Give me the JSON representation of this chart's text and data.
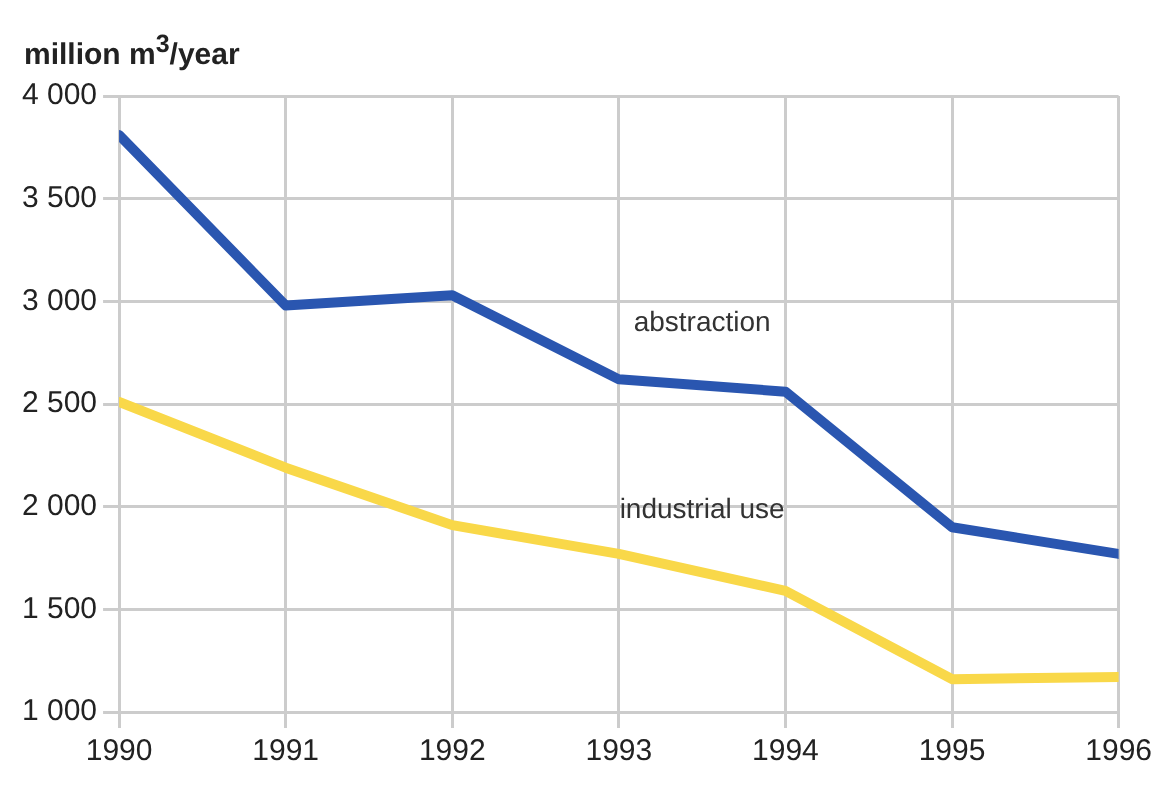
{
  "chart_data": {
    "type": "line",
    "ylabel": "million m$^{3}$/year",
    "x": [
      1990,
      1991,
      1992,
      1993,
      1994,
      1995,
      1996
    ],
    "series": [
      {
        "name": "abstraction",
        "color": "#2a56b0",
        "values": [
          3810,
          2980,
          3030,
          2620,
          2560,
          1900,
          1770
        ]
      },
      {
        "name": "industrial use",
        "color": "#f9d849",
        "values": [
          2510,
          2190,
          1910,
          1770,
          1590,
          1160,
          1170
        ]
      }
    ],
    "xlim": [
      1990,
      1996
    ],
    "xticks": [
      1990,
      1991,
      1992,
      1993,
      1994,
      1995,
      1996
    ],
    "ylim": [
      1000,
      4000
    ],
    "yticks": [
      {
        "value": 1000,
        "label": "1 000"
      },
      {
        "value": 1500,
        "label": "1 500"
      },
      {
        "value": 2000,
        "label": "2 000"
      },
      {
        "value": 2500,
        "label": "2 500"
      },
      {
        "value": 3000,
        "label": "3 000"
      },
      {
        "value": 3500,
        "label": "3 500"
      },
      {
        "value": 4000,
        "label": "4 000"
      }
    ],
    "grid": true,
    "legend": false,
    "marker": "none",
    "line_style": "solid"
  }
}
